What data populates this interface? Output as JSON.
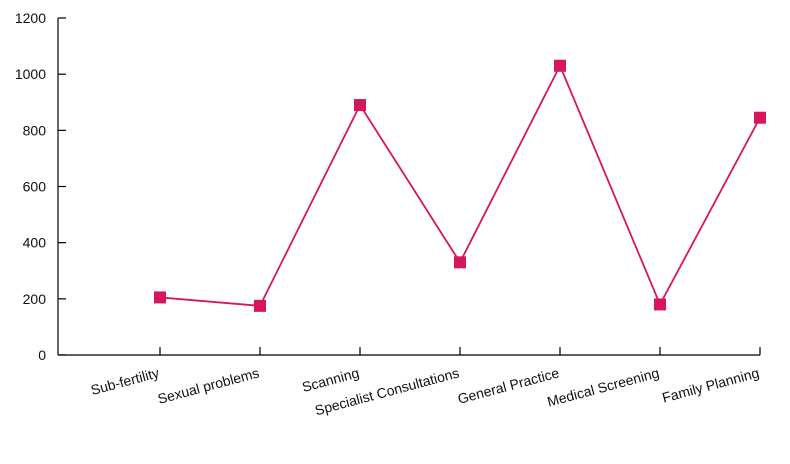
{
  "chart_data": {
    "type": "line",
    "categories": [
      "Sub-fertility",
      "Sexual problems",
      "Scanning",
      "Specialist Consultations",
      "General Practice",
      "Medical Screening",
      "Family Planning"
    ],
    "series": [
      {
        "values": [
          205,
          175,
          890,
          330,
          1030,
          180,
          845
        ]
      }
    ],
    "yticks": [
      "0",
      "200",
      "400",
      "600",
      "800",
      "1000",
      "1200"
    ],
    "ylim": [
      0,
      1200
    ],
    "grid": false,
    "legend": "none",
    "colors": {
      "series": "#d6165f",
      "axis": "#000000"
    },
    "marker": "square",
    "xlabel": "",
    "ylabel": "",
    "title": ""
  }
}
